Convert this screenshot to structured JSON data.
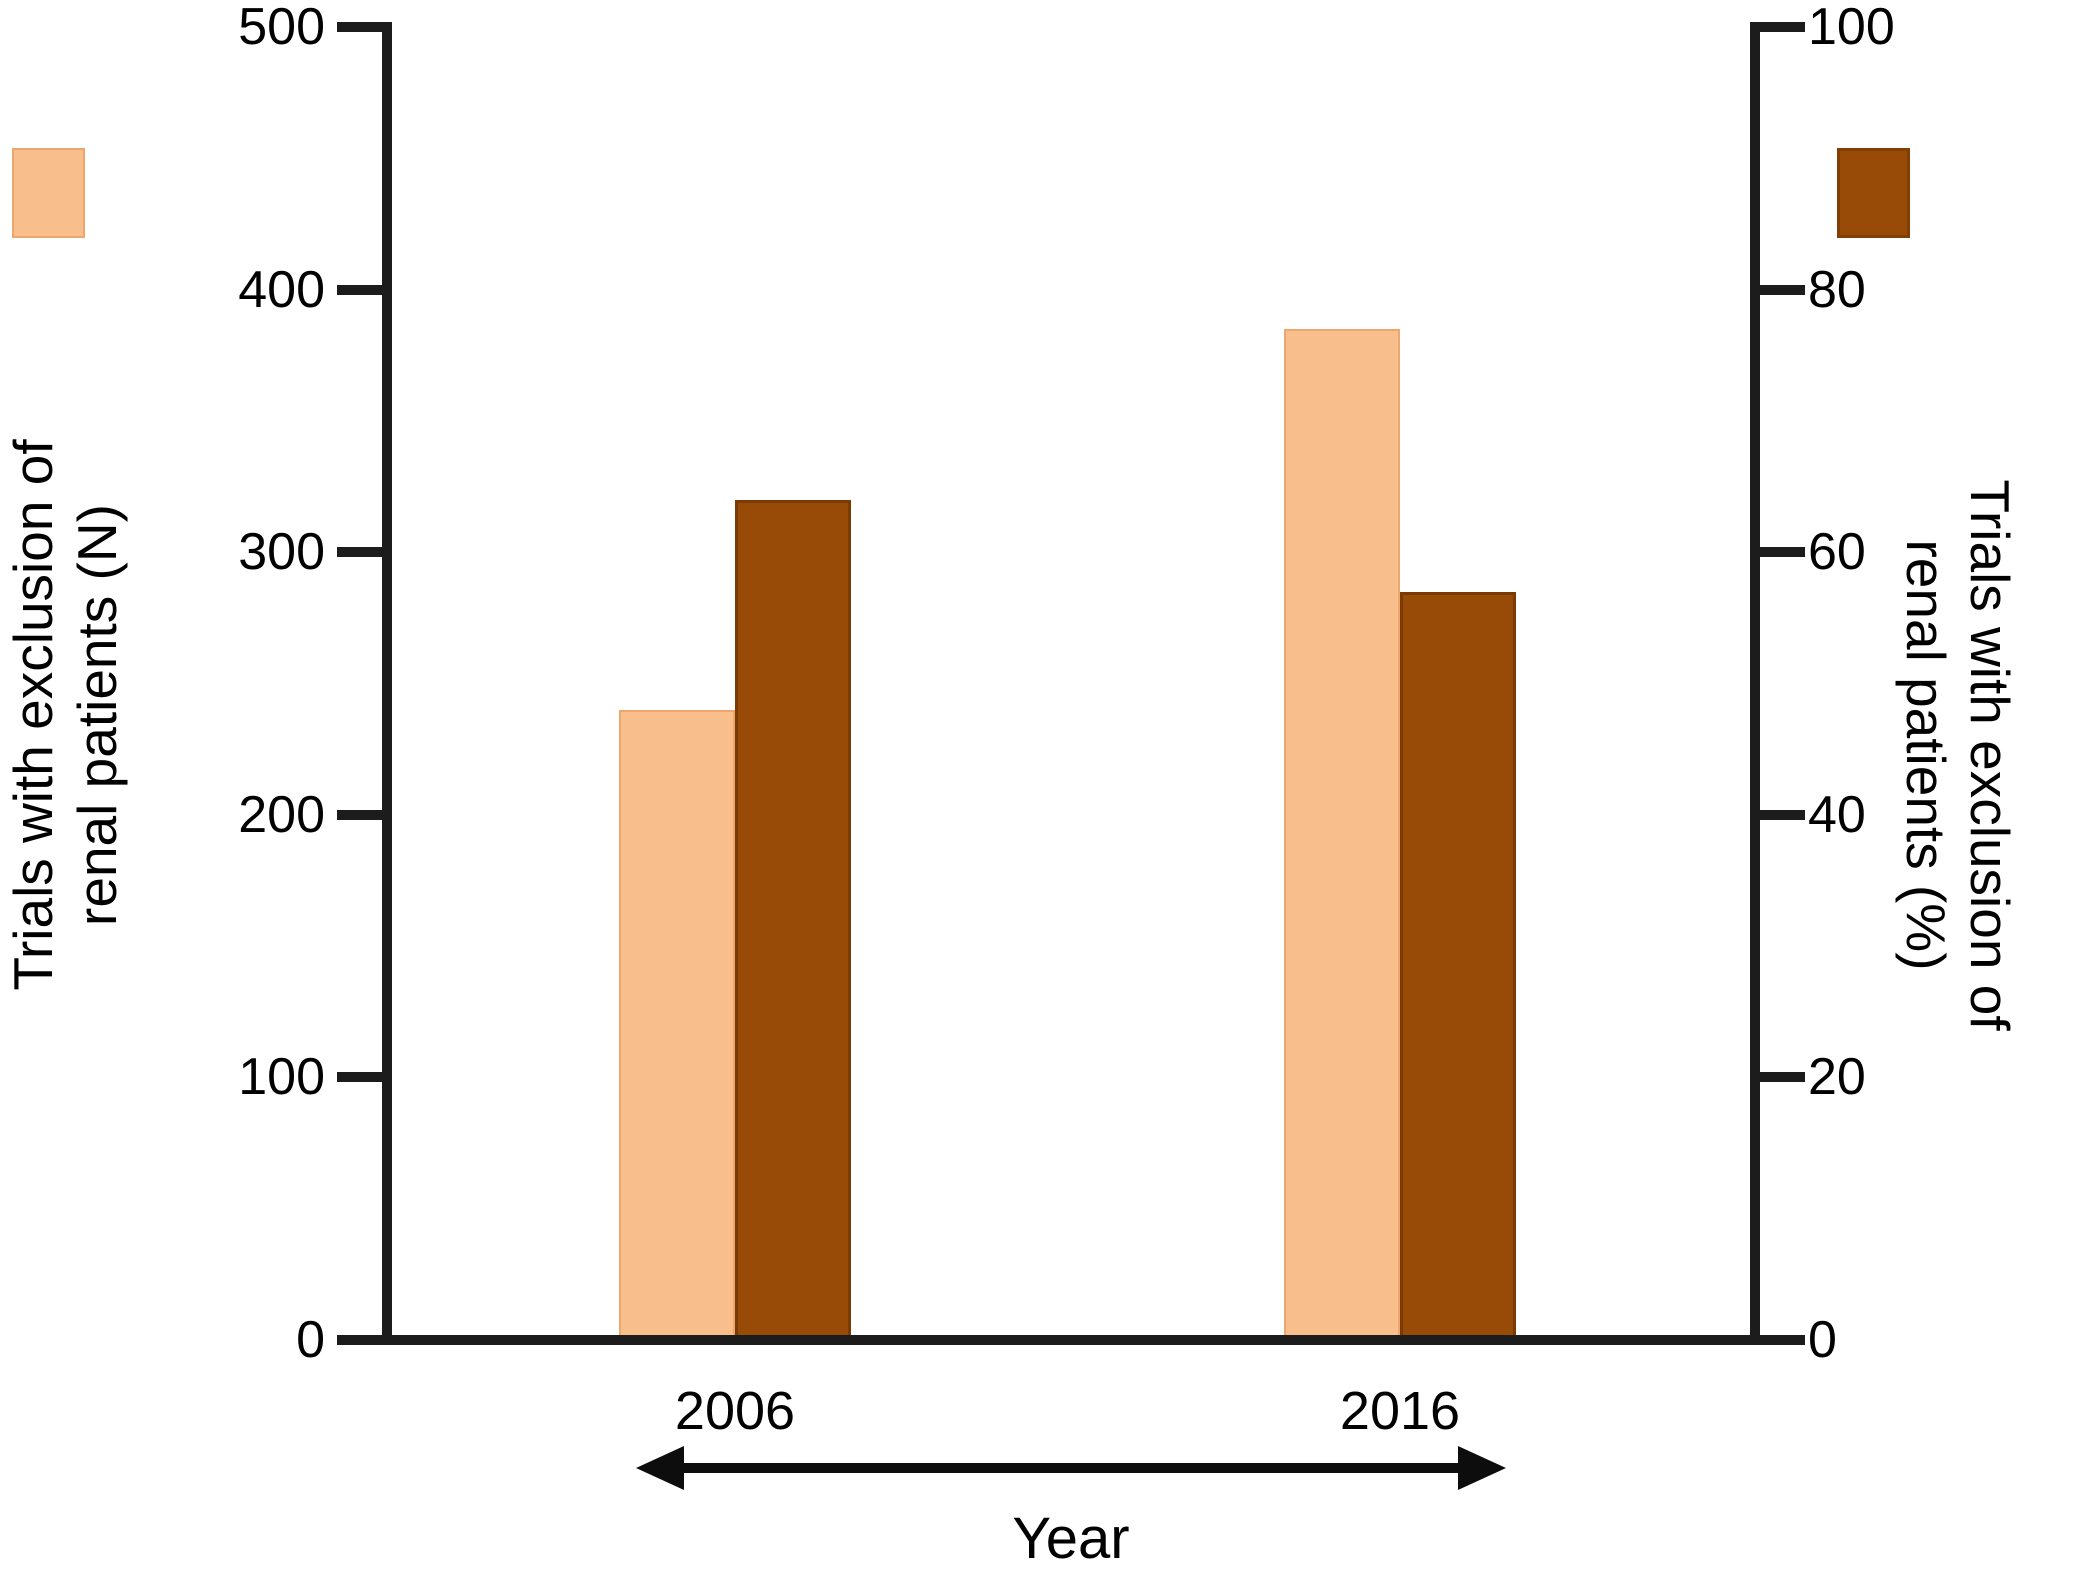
{
  "chart_data": {
    "type": "bar",
    "categories": [
      "2006",
      "2016"
    ],
    "series": [
      {
        "name": "Trials with exclusion of renal patients (N)",
        "axis": "left",
        "color": "#F8BE8C",
        "values": [
          240,
          385
        ]
      },
      {
        "name": "Trials with exclusion of renal patients (%)",
        "axis": "right",
        "color": "#984B06",
        "values": [
          64,
          57
        ]
      }
    ],
    "title": "",
    "xlabel": "Year",
    "ylabel_left": "Trials with exclusion of renal patients (N)",
    "ylabel_right": "Trials with exclusion of renal patients (%)",
    "left_axis": {
      "min": 0,
      "max": 500,
      "ticks": [
        0,
        100,
        200,
        300,
        400,
        500
      ]
    },
    "right_axis": {
      "min": 0,
      "max": 100,
      "ticks": [
        0,
        20,
        40,
        60,
        80,
        100
      ]
    },
    "grid": false,
    "legend_position": "swatches top-left (N series) and top-right (% series), no text"
  },
  "labels": {
    "left_axis_line1": "Trials with exclusion of",
    "left_axis_line2": "renal patients (N)",
    "right_axis_line1": "Trials with exclusion of",
    "right_axis_line2": "renal patients (%)",
    "x_axis_title": "Year"
  },
  "colors": {
    "series_count": "#F8BE8C",
    "series_percent": "#984B06",
    "axis": "#1c1c1c",
    "background": "#ffffff"
  }
}
